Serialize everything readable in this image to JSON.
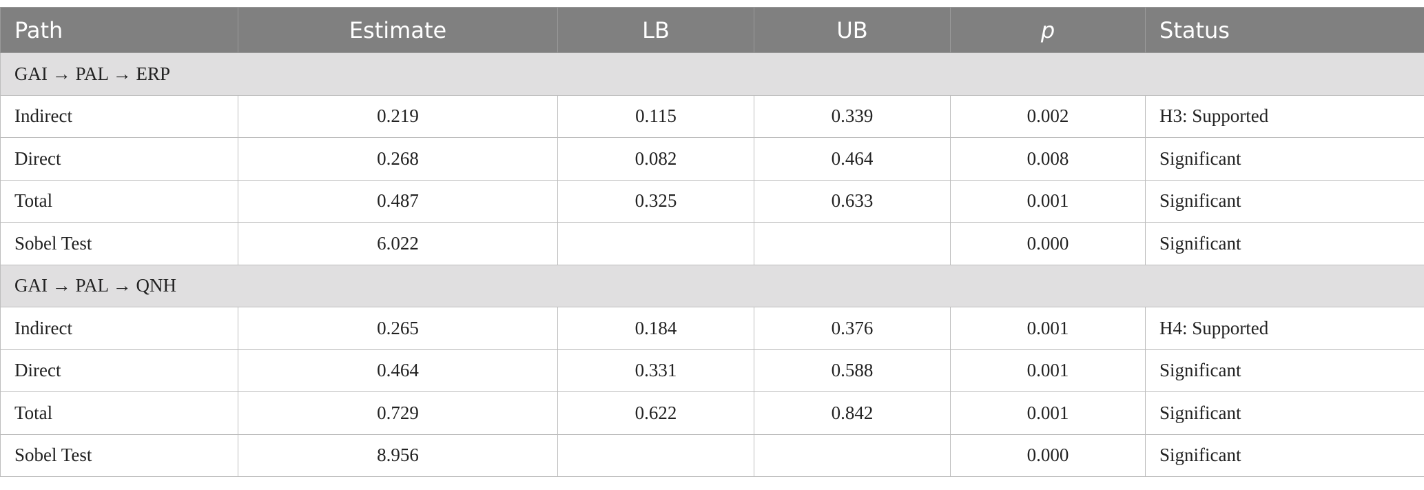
{
  "table": {
    "header": [
      "Path",
      "Estimate",
      "LB",
      "UB",
      "p",
      "Status"
    ],
    "groups": [
      {
        "title": "GAI → PAL → ERP",
        "rows": [
          [
            "Indirect",
            "0.219",
            "0.115",
            "0.339",
            "0.002",
            "H3: Supported"
          ],
          [
            "Direct",
            "0.268",
            "0.082",
            "0.464",
            "0.008",
            "Significant"
          ],
          [
            "Total",
            "0.487",
            "0.325",
            "0.633",
            "0.001",
            "Significant"
          ],
          [
            "Sobel Test",
            "6.022",
            null,
            null,
            "0.000",
            "Significant"
          ]
        ]
      },
      {
        "title": "GAI → PAL → QNH",
        "rows": [
          [
            "Indirect",
            "0.265",
            "0.184",
            "0.376",
            "0.001",
            "H4: Supported"
          ],
          [
            "Direct",
            "0.464",
            "0.331",
            "0.588",
            "0.001",
            "Significant"
          ],
          [
            "Total",
            "0.729",
            "0.622",
            "0.842",
            "0.001",
            "Significant"
          ],
          [
            "Sobel Test",
            "8.956",
            null,
            null,
            "0.000",
            "Significant"
          ]
        ]
      }
    ]
  }
}
